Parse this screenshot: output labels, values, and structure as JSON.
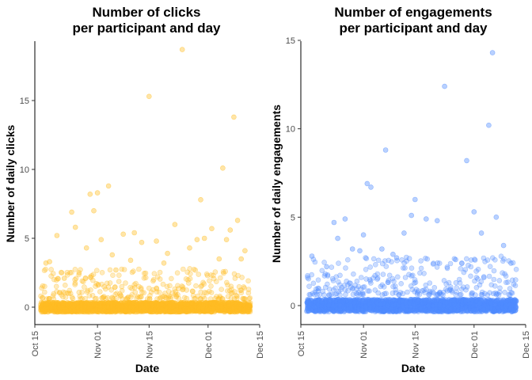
{
  "chart_data": [
    {
      "type": "scatter",
      "title_line1": "Number of clicks",
      "title_line2": "per participant and day",
      "xlabel": "Date",
      "ylabel": "Number of daily clicks",
      "xlim": [
        "2019-10-15",
        "2019-12-15"
      ],
      "ylim": [
        -1,
        19.5
      ],
      "x_ticks": [
        "Oct 15",
        "Nov 01",
        "Nov 15",
        "Dec 01",
        "Dec 15"
      ],
      "y_ticks": [
        0,
        5,
        10,
        15
      ],
      "point_color": "#FFBD24",
      "grid": false,
      "date_range": [
        "2019-10-17",
        "2019-12-12"
      ],
      "baseline_value": 0,
      "outliers": [
        {
          "x": "2019-10-18",
          "y": 3.2
        },
        {
          "x": "2019-10-19",
          "y": 3.3
        },
        {
          "x": "2019-10-23",
          "y": 2.1
        },
        {
          "x": "2019-10-25",
          "y": 6.9
        },
        {
          "x": "2019-10-27",
          "y": 2.5
        },
        {
          "x": "2019-10-29",
          "y": 4.3
        },
        {
          "x": "2019-10-30",
          "y": 8.2
        },
        {
          "x": "2019-10-31",
          "y": 7.0
        },
        {
          "x": "2019-11-01",
          "y": 8.3
        },
        {
          "x": "2019-11-02",
          "y": 4.9
        },
        {
          "x": "2019-11-04",
          "y": 8.8
        },
        {
          "x": "2019-11-05",
          "y": 3.8
        },
        {
          "x": "2019-11-06",
          "y": 2.7
        },
        {
          "x": "2019-11-08",
          "y": 5.3
        },
        {
          "x": "2019-11-10",
          "y": 3.4
        },
        {
          "x": "2019-11-13",
          "y": 4.7
        },
        {
          "x": "2019-11-15",
          "y": 15.3
        },
        {
          "x": "2019-11-17",
          "y": 4.8
        },
        {
          "x": "2019-11-19",
          "y": 3.2
        },
        {
          "x": "2019-11-22",
          "y": 6.0
        },
        {
          "x": "2019-11-24",
          "y": 18.7
        },
        {
          "x": "2019-11-26",
          "y": 4.3
        },
        {
          "x": "2019-11-28",
          "y": 4.9
        },
        {
          "x": "2019-11-29",
          "y": 7.8
        },
        {
          "x": "2019-11-30",
          "y": 5.0
        },
        {
          "x": "2019-12-02",
          "y": 5.7
        },
        {
          "x": "2019-12-04",
          "y": 3.5
        },
        {
          "x": "2019-12-05",
          "y": 10.1
        },
        {
          "x": "2019-12-06",
          "y": 4.9
        },
        {
          "x": "2019-12-07",
          "y": 5.6
        },
        {
          "x": "2019-12-08",
          "y": 13.8
        },
        {
          "x": "2019-12-09",
          "y": 6.3
        },
        {
          "x": "2019-12-10",
          "y": 3.5
        },
        {
          "x": "2019-12-11",
          "y": 4.1
        },
        {
          "x": "2019-10-21",
          "y": 5.2
        },
        {
          "x": "2019-10-26",
          "y": 5.8
        },
        {
          "x": "2019-11-11",
          "y": 5.4
        },
        {
          "x": "2019-11-20",
          "y": 3.9
        }
      ]
    },
    {
      "type": "scatter",
      "title_line1": "Number of engagements",
      "title_line2": "per participant and day",
      "xlabel": "Date",
      "ylabel": "Number of daily engagements",
      "xlim": [
        "2019-10-15",
        "2019-12-15"
      ],
      "ylim": [
        -1,
        15
      ],
      "x_ticks": [
        "Oct 15",
        "Nov 01",
        "Nov 15",
        "Dec 01",
        "Dec 15"
      ],
      "y_ticks": [
        0,
        5,
        10,
        15
      ],
      "point_color": "#4F8BFF",
      "grid": false,
      "date_range": [
        "2019-10-17",
        "2019-12-12"
      ],
      "baseline_value": 0,
      "outliers": [
        {
          "x": "2019-10-18",
          "y": 2.8
        },
        {
          "x": "2019-10-22",
          "y": 2.2
        },
        {
          "x": "2019-10-24",
          "y": 4.7
        },
        {
          "x": "2019-10-25",
          "y": 3.8
        },
        {
          "x": "2019-10-27",
          "y": 4.9
        },
        {
          "x": "2019-10-29",
          "y": 3.2
        },
        {
          "x": "2019-11-01",
          "y": 4.0
        },
        {
          "x": "2019-11-02",
          "y": 6.9
        },
        {
          "x": "2019-11-03",
          "y": 6.7
        },
        {
          "x": "2019-11-06",
          "y": 3.2
        },
        {
          "x": "2019-11-07",
          "y": 8.8
        },
        {
          "x": "2019-11-09",
          "y": 2.9
        },
        {
          "x": "2019-11-12",
          "y": 4.1
        },
        {
          "x": "2019-11-14",
          "y": 5.1
        },
        {
          "x": "2019-11-15",
          "y": 6.0
        },
        {
          "x": "2019-11-18",
          "y": 4.9
        },
        {
          "x": "2019-11-21",
          "y": 4.8
        },
        {
          "x": "2019-11-23",
          "y": 12.4
        },
        {
          "x": "2019-11-26",
          "y": 2.6
        },
        {
          "x": "2019-11-29",
          "y": 8.2
        },
        {
          "x": "2019-12-01",
          "y": 5.3
        },
        {
          "x": "2019-12-03",
          "y": 4.1
        },
        {
          "x": "2019-12-05",
          "y": 10.2
        },
        {
          "x": "2019-12-06",
          "y": 14.3
        },
        {
          "x": "2019-12-07",
          "y": 5.0
        },
        {
          "x": "2019-12-09",
          "y": 3.4
        },
        {
          "x": "2019-12-11",
          "y": 2.4
        },
        {
          "x": "2019-11-10",
          "y": 2.7
        },
        {
          "x": "2019-10-31",
          "y": 3.1
        }
      ]
    }
  ]
}
